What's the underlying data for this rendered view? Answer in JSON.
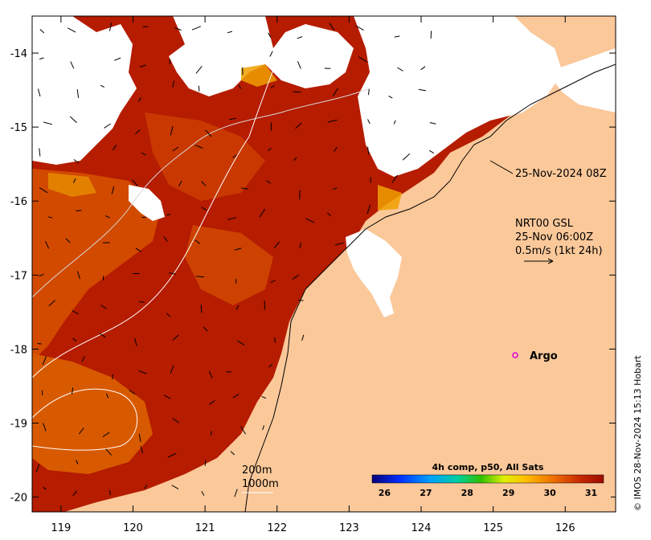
{
  "map": {
    "x_ticks": [
      "119",
      "120",
      "121",
      "122",
      "123",
      "124",
      "125",
      "126"
    ],
    "y_ticks": [
      "-14",
      "-15",
      "-16",
      "-17",
      "-18",
      "-19",
      "-20"
    ],
    "x_range": [
      118.6,
      126.7
    ],
    "y_range": [
      -20.2,
      -13.5
    ]
  },
  "annotations": {
    "timestamp": "25-Nov-2024 08Z",
    "current_source": "NRT00 GSL",
    "current_time": "25-Nov 06:00Z",
    "current_scale": "0.5m/s (1kt 24h)",
    "argo_label": "Argo",
    "depth_200": "200m",
    "depth_1000": "1000m"
  },
  "colorbar": {
    "title": "4h comp, p50, All Sats",
    "ticks": [
      "26",
      "27",
      "28",
      "29",
      "30",
      "31"
    ],
    "range": [
      25.7,
      31.3
    ]
  },
  "credit": "© IMOS 28-Nov-2024 15:13 Hobart",
  "colors": {
    "land": "#fbc89a",
    "cloud": "#ffffff",
    "sst_hot": "#b01a00",
    "sst_mid": "#d04800",
    "sst_warm": "#e07a00",
    "argo": "#e000e0"
  }
}
